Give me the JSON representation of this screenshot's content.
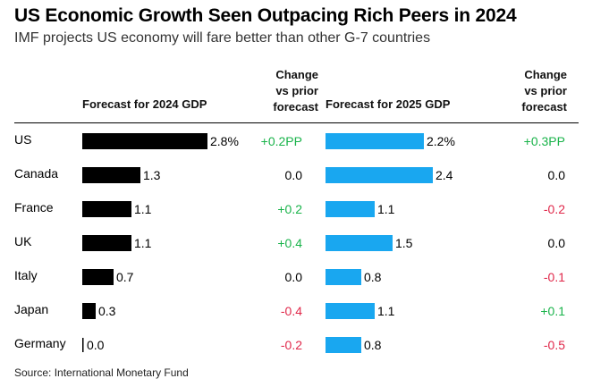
{
  "title": "US Economic Growth Seen Outpacing Rich Peers in 2024",
  "subtitle": "IMF projects US economy will fare better than other G-7 countries",
  "source": "Source: International Monetary Fund",
  "colors": {
    "bar_2024": "#000000",
    "bar_2025": "#19a7f0",
    "positive": "#19b34a",
    "negative": "#e0284a",
    "neutral": "#000000"
  },
  "chart_data": {
    "type": "table",
    "columns": {
      "country": "",
      "gdp2024": "Forecast for 2024 GDP",
      "change2024": [
        "Change",
        "vs prior",
        "forecast"
      ],
      "gdp2025": "Forecast for 2025 GDP",
      "change2025": [
        "Change",
        "vs prior",
        "forecast"
      ]
    },
    "countries": [
      "US",
      "Canada",
      "France",
      "UK",
      "Italy",
      "Japan",
      "Germany"
    ],
    "gdp2024": [
      2.8,
      1.3,
      1.1,
      1.1,
      0.7,
      0.3,
      0.0
    ],
    "gdp2024_labels": [
      "2.8%",
      "1.3",
      "1.1",
      "1.1",
      "0.7",
      "0.3",
      "0.0"
    ],
    "change2024": [
      "+0.2PP",
      "0.0",
      "+0.2",
      "+0.4",
      "0.0",
      "-0.4",
      "-0.2"
    ],
    "gdp2025": [
      2.2,
      2.4,
      1.1,
      1.5,
      0.8,
      1.1,
      0.8
    ],
    "gdp2025_labels": [
      "2.2%",
      "2.4",
      "1.1",
      "1.5",
      "0.8",
      "1.1",
      "0.8"
    ],
    "change2025": [
      "+0.3PP",
      "0.0",
      "-0.2",
      "0.0",
      "-0.1",
      "+0.1",
      "-0.5"
    ],
    "series": [
      {
        "name": "Forecast for 2024 GDP",
        "values": [
          2.8,
          1.3,
          1.1,
          1.1,
          0.7,
          0.3,
          0.0
        ]
      },
      {
        "name": "Forecast for 2025 GDP",
        "values": [
          2.2,
          2.4,
          1.1,
          1.5,
          0.8,
          1.1,
          0.8
        ]
      }
    ]
  }
}
